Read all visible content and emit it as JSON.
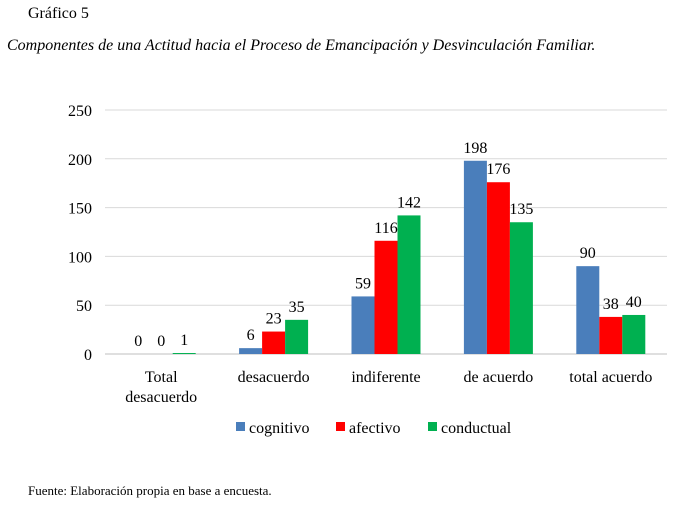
{
  "figure": {
    "label": "Gráfico 5",
    "title": "Componentes de una Actitud hacia el Proceso de Emancipación y Desvinculación Familiar.",
    "source": "Fuente: Elaboración propia en base a encuesta."
  },
  "chart_data": {
    "type": "bar",
    "categories": [
      [
        "Total",
        "desacuerdo"
      ],
      [
        "desacuerdo"
      ],
      [
        "indiferente"
      ],
      [
        "de acuerdo"
      ],
      [
        "total acuerdo"
      ]
    ],
    "series": [
      {
        "name": "cognitivo",
        "values": [
          0,
          6,
          59,
          198,
          90
        ],
        "color": "#4a7ebb"
      },
      {
        "name": "afectivo",
        "values": [
          0,
          23,
          116,
          176,
          38
        ],
        "color": "#ff0000"
      },
      {
        "name": "conductual",
        "values": [
          1,
          35,
          142,
          135,
          40
        ],
        "color": "#00b050"
      }
    ],
    "ylim": [
      0,
      250
    ],
    "yticks": [
      0,
      50,
      100,
      150,
      200,
      250
    ],
    "grid": true,
    "legend": "bottom",
    "data_labels": true
  }
}
